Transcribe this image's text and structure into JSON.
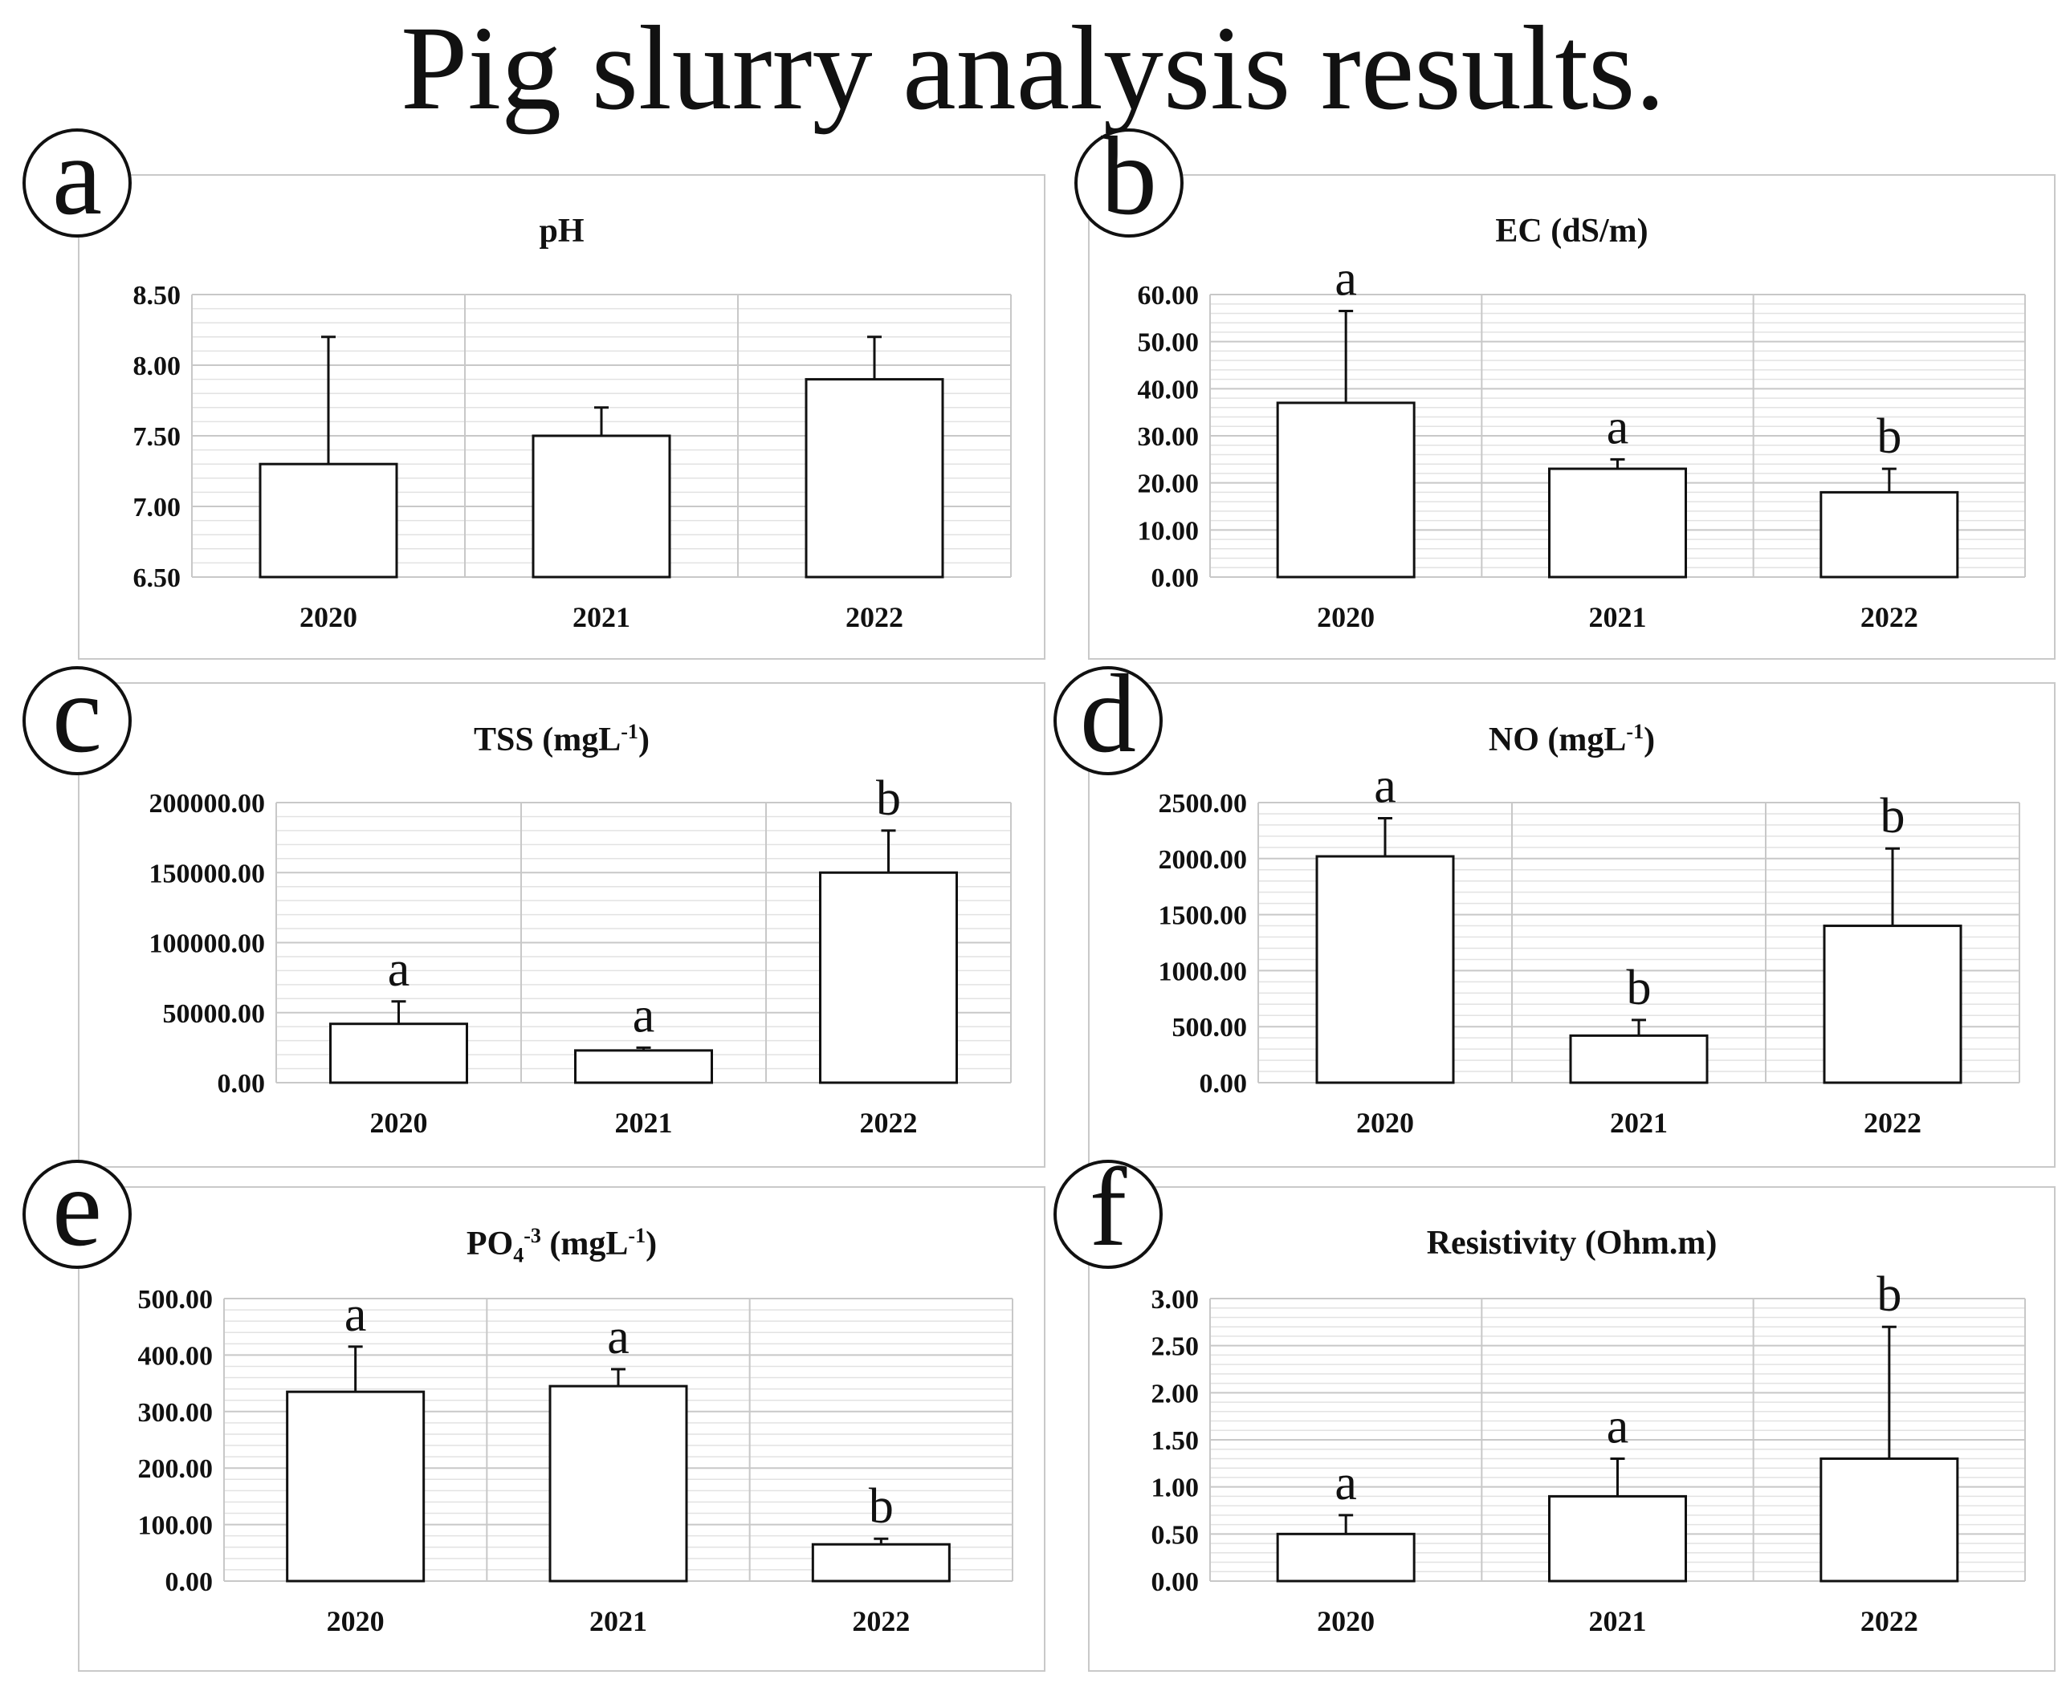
{
  "figure_title": "Pig slurry analysis results.",
  "colors": {
    "bar_fill": "#ffffff",
    "bar_stroke": "#111111",
    "grid_major": "#c8c8c8",
    "grid_minor": "#e2e2e2",
    "panel_border": "#c9c9c9"
  },
  "chart_data": [
    {
      "panel": "a",
      "type": "bar",
      "title": "pH",
      "categories": [
        "2020",
        "2021",
        "2022"
      ],
      "values": [
        7.3,
        7.5,
        7.9
      ],
      "errors": [
        0.9,
        0.2,
        0.3
      ],
      "letters": [
        "",
        "",
        ""
      ],
      "ylim": [
        6.5,
        8.5
      ],
      "yticks": [
        6.5,
        7.0,
        7.5,
        8.0,
        8.5
      ],
      "yticklabels": [
        "6.50",
        "7.00",
        "7.50",
        "8.00",
        "8.50"
      ],
      "grid": true,
      "legend": "none"
    },
    {
      "panel": "b",
      "type": "bar",
      "title": "EC (dS/m)",
      "categories": [
        "2020",
        "2021",
        "2022"
      ],
      "values": [
        37,
        23,
        18
      ],
      "errors": [
        19.5,
        2,
        5
      ],
      "letters": [
        "a",
        "a",
        "b"
      ],
      "ylim": [
        0,
        60
      ],
      "yticks": [
        0,
        10,
        20,
        30,
        40,
        50,
        60
      ],
      "yticklabels": [
        "0.00",
        "10.00",
        "20.00",
        "30.00",
        "40.00",
        "50.00",
        "60.00"
      ],
      "grid": true,
      "legend": "none"
    },
    {
      "panel": "c",
      "type": "bar",
      "title": "TSS (mgL",
      "title_sup": "-1",
      "title_end": ")",
      "categories": [
        "2020",
        "2021",
        "2022"
      ],
      "values": [
        42000,
        23000,
        150000
      ],
      "errors": [
        16000,
        2000,
        30000
      ],
      "letters": [
        "a",
        "a",
        "b"
      ],
      "ylim": [
        0,
        200000
      ],
      "yticks": [
        0,
        50000,
        100000,
        150000,
        200000
      ],
      "yticklabels": [
        "0.00",
        "50000.00",
        "100000.00",
        "150000.00",
        "200000.00"
      ],
      "grid": true,
      "legend": "none"
    },
    {
      "panel": "d",
      "type": "bar",
      "title": "NO (mgL",
      "title_sup": "-1",
      "title_end": ")",
      "categories": [
        "2020",
        "2021",
        "2022"
      ],
      "values": [
        2020,
        420,
        1400
      ],
      "errors": [
        340,
        140,
        690
      ],
      "letters": [
        "a",
        "b",
        "b"
      ],
      "ylim": [
        0,
        2500
      ],
      "yticks": [
        0,
        500,
        1000,
        1500,
        2000,
        2500
      ],
      "yticklabels": [
        "0.00",
        "500.00",
        "1000.00",
        "1500.00",
        "2000.00",
        "2500.00"
      ],
      "grid": true,
      "legend": "none"
    },
    {
      "panel": "e",
      "type": "bar",
      "title": "PO",
      "title_sub": "4",
      "title_sup": "-3",
      "title_end": " (mgL",
      "title_sup2": "-1",
      "title_end2": ")",
      "categories": [
        "2020",
        "2021",
        "2022"
      ],
      "values": [
        335,
        345,
        65
      ],
      "errors": [
        80,
        30,
        10
      ],
      "letters": [
        "a",
        "a",
        "b"
      ],
      "ylim": [
        0,
        500
      ],
      "yticks": [
        0,
        100,
        200,
        300,
        400,
        500
      ],
      "yticklabels": [
        "0.00",
        "100.00",
        "200.00",
        "300.00",
        "400.00",
        "500.00"
      ],
      "grid": true,
      "legend": "none"
    },
    {
      "panel": "f",
      "type": "bar",
      "title": "Resistivity (Ohm.m)",
      "categories": [
        "2020",
        "2021",
        "2022"
      ],
      "values": [
        0.5,
        0.9,
        1.3
      ],
      "errors": [
        0.2,
        0.4,
        1.4
      ],
      "letters": [
        "a",
        "a",
        "b"
      ],
      "ylim": [
        0,
        3
      ],
      "yticks": [
        0,
        0.5,
        1.0,
        1.5,
        2.0,
        2.5,
        3.0
      ],
      "yticklabels": [
        "0.00",
        "0.50",
        "1.00",
        "1.50",
        "2.00",
        "2.50",
        "3.00"
      ],
      "grid": true,
      "legend": "none"
    }
  ]
}
